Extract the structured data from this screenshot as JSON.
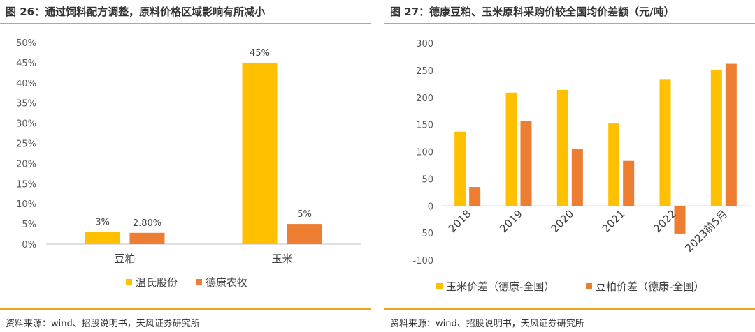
{
  "panels": {
    "left": {
      "title": "图 26：通过饲料配方调整，原料价格区域影响有所减小",
      "source": "资料来源：wind、招股说明书，天风证券研究所"
    },
    "right": {
      "title": "图 27：德康豆粕、玉米原料采购价较全国均价差额（元/吨）",
      "source": "资料来源：wind、招股说明书，天风证券研究所"
    }
  },
  "colors": {
    "rule": "#f0a020",
    "yellow": "#ffc000",
    "orange": "#ed7d31",
    "axis": "#bfbfbf"
  },
  "chart_data": [
    {
      "type": "bar",
      "categories": [
        "豆粕",
        "玉米"
      ],
      "series": [
        {
          "name": "温氏股份",
          "values": [
            3,
            45
          ],
          "labels": [
            "3%",
            "45%"
          ],
          "color": "#ffc000"
        },
        {
          "name": "德康农牧",
          "values": [
            2.8,
            5
          ],
          "labels": [
            "2.80%",
            "5%"
          ],
          "color": "#ed7d31"
        }
      ],
      "yticks": [
        "0%",
        "5%",
        "10%",
        "15%",
        "20%",
        "25%",
        "30%",
        "35%",
        "40%",
        "45%",
        "50%"
      ],
      "ylim": [
        0,
        50
      ],
      "legend": "bottom",
      "grid": false
    },
    {
      "type": "bar",
      "categories": [
        "2018",
        "2019",
        "2020",
        "2021",
        "2022",
        "2023前5月"
      ],
      "series": [
        {
          "name": "玉米价差（德康-全国）",
          "values": [
            137,
            209,
            214,
            152,
            234,
            250
          ],
          "color": "#ffc000"
        },
        {
          "name": "豆粕价差（德康-全国）",
          "values": [
            35,
            156,
            105,
            83,
            -51,
            262
          ],
          "color": "#ed7d31"
        }
      ],
      "yticks": [
        "300",
        "250",
        "200",
        "150",
        "100",
        "50",
        "0",
        "-50",
        "-100"
      ],
      "ylim": [
        -100,
        300
      ],
      "legend": "bottom",
      "grid": false
    }
  ]
}
